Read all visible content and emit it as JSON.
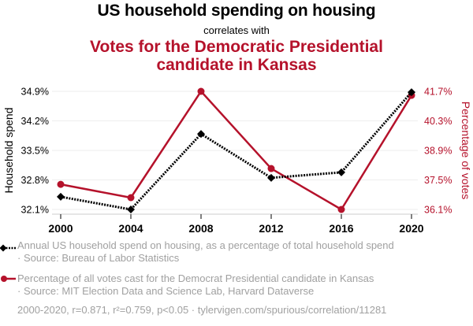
{
  "header": {
    "title": "US household spending on housing",
    "connector": "correlates with",
    "title2_line1": "Votes for the Democratic Presidential",
    "title2_line2": "candidate in Kansas"
  },
  "colors": {
    "series1": "#000000",
    "series2": "#b5122b",
    "grid": "#eeeeee",
    "legend_text": "#a0a0a0"
  },
  "chart_data": {
    "type": "line",
    "title": "US household spending on housing correlates with Votes for the Democratic Presidential candidate in Kansas",
    "x": [
      2000,
      2004,
      2008,
      2012,
      2016,
      2020
    ],
    "x_tick_labels": [
      "2000",
      "2004",
      "2008",
      "2012",
      "2016",
      "2020"
    ],
    "grid": true,
    "series": [
      {
        "name": "Annual US household spend on housing, as a percentage of total household spend",
        "axis": "left",
        "style": "dotted",
        "marker": "diamond",
        "values": [
          32.4,
          32.1,
          33.89,
          32.85,
          32.98,
          34.88
        ]
      },
      {
        "name": "Percentage of all votes cast for the Democrat Presidential candidate in Kansas",
        "axis": "right",
        "style": "solid",
        "marker": "circle",
        "values": [
          37.29,
          36.66,
          41.7,
          38.04,
          36.1,
          41.51
        ]
      }
    ],
    "left_axis": {
      "label": "Household spend",
      "ylim": [
        32.1,
        34.9
      ],
      "ticks": [
        34.9,
        34.2,
        33.5,
        32.8,
        32.1
      ],
      "tick_labels": [
        "34.9%",
        "34.2%",
        "33.5%",
        "32.8%",
        "32.1%"
      ]
    },
    "right_axis": {
      "label": "Percentage of votes",
      "ylim": [
        36.1,
        41.7
      ],
      "ticks": [
        41.7,
        40.3,
        38.9,
        37.5,
        36.1
      ],
      "tick_labels": [
        "41.7%",
        "40.3%",
        "38.9%",
        "37.5%",
        "36.1%"
      ]
    },
    "xlabel": ""
  },
  "legend": {
    "item1_line1": "Annual US household spend on housing, as a percentage of total household spend",
    "item1_line2": "· Source: Bureau of Labor Statistics",
    "item2_line1": "Percentage of all votes cast for the Democrat Presidential candidate in Kansas",
    "item2_line2": "· Source: MIT Election Data and Science Lab, Harvard Dataverse",
    "footer": "2000-2020, r=0.871, r²=0.759, p<0.05 · tylervigen.com/spurious/correlation/11281"
  }
}
